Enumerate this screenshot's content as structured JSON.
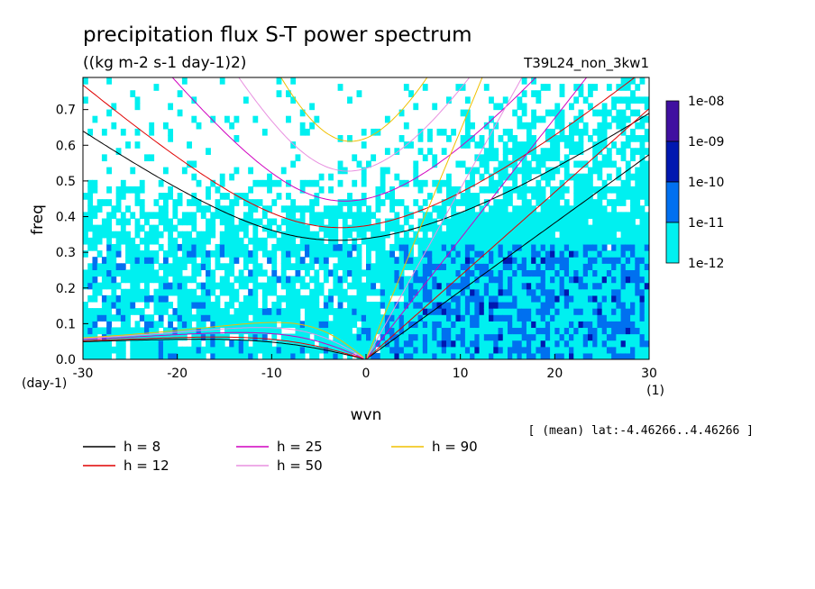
{
  "chart_data": {
    "type": "heatmap",
    "title": "precipitation flux S-T power spectrum",
    "subtitle": "((kg m-2 s-1 day-1)2)",
    "run_label": "T39L24_non_3kw1",
    "xlabel": "wvn",
    "ylabel": "freq",
    "x_unit_label": "(1)",
    "y_unit_label": "(day-1)",
    "xlim": [
      -30,
      30
    ],
    "ylim": [
      0,
      0.79
    ],
    "x_ticks": [
      -30,
      -20,
      -10,
      0,
      10,
      20,
      30
    ],
    "x_tick_labels": [
      "-30",
      "-20",
      "-10",
      "0",
      "10",
      "20",
      "30"
    ],
    "y_ticks": [
      0,
      0.1,
      0.2,
      0.3,
      0.4,
      0.5,
      0.6,
      0.7
    ],
    "y_tick_labels": [
      "0.0",
      "0.1",
      "0.2",
      "0.3",
      "0.4",
      "0.5",
      "0.6",
      "0.7"
    ],
    "colorbar": {
      "labels": [
        "1e-08",
        "1e-09",
        "1e-10",
        "1e-11",
        "1e-12"
      ],
      "colors": [
        "#4010a0",
        "#0018b0",
        "#0070f0",
        "#00f0f0"
      ]
    },
    "dispersion_curves": [
      {
        "h": 8,
        "label": "h =  8",
        "color": "#000000"
      },
      {
        "h": 12,
        "label": "h = 12",
        "color": "#e00000"
      },
      {
        "h": 25,
        "label": "h = 25",
        "color": "#d000c0"
      },
      {
        "h": 50,
        "label": "h = 50",
        "color": "#e890e0"
      },
      {
        "h": 90,
        "label": "h = 90",
        "color": "#f0c000"
      }
    ],
    "note": "[ (mean) lat:-4.46266..4.46266 ]"
  }
}
